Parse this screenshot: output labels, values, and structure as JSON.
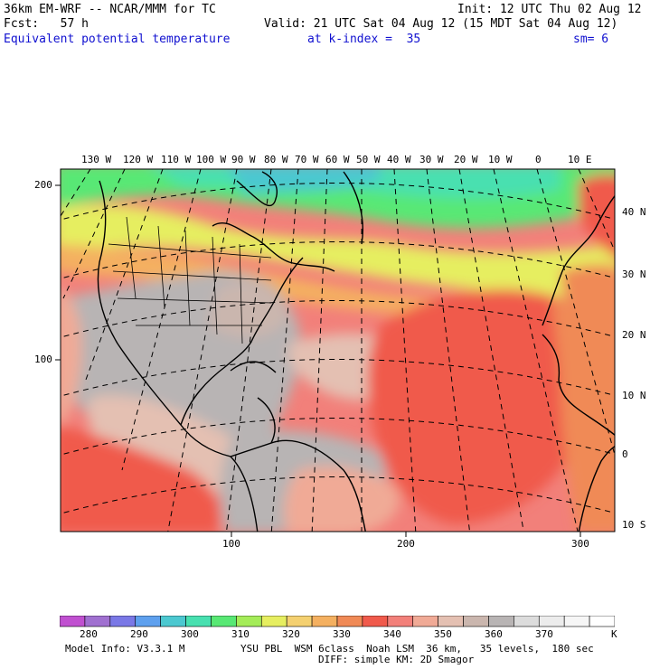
{
  "header": {
    "model": "36km EM-WRF -- NCAR/MMM for TC",
    "init": "Init: 12 UTC Thu 02 Aug 12",
    "fcst": "Fcst:   57 h",
    "valid": "Valid: 21 UTC Sat 04 Aug 12 (15 MDT Sat 04 Aug 12)",
    "field": "Equivalent potential temperature",
    "level": "at k-index =  35",
    "smooth": "sm= 6"
  },
  "map": {
    "lon_labels": [
      "130 W",
      "120 W",
      "110 W",
      "100 W",
      "90 W",
      "80 W",
      "70 W",
      "60 W",
      "50 W",
      "40 W",
      "30 W",
      "20 W",
      "10 W",
      "0",
      "10 E"
    ],
    "lat_labels": [
      "40 N",
      "30 N",
      "20 N",
      "10 N",
      "0",
      "10 S"
    ],
    "grid_x_labels": [
      "100",
      "200",
      "300"
    ],
    "grid_y_labels": [
      "200",
      "100"
    ]
  },
  "colorbar": {
    "levels": [
      "280",
      "290",
      "300",
      "310",
      "320",
      "330",
      "340",
      "350",
      "360",
      "370"
    ],
    "unit": "K",
    "colors": [
      "#c050d0",
      "#a070d0",
      "#7a78e6",
      "#5ea0ee",
      "#4cc8d0",
      "#48e0b0",
      "#58e874",
      "#a4ec58",
      "#e6ee60",
      "#f4d070",
      "#f4b060",
      "#f08a56",
      "#f05a4c",
      "#f2807a",
      "#f0aa96",
      "#e4c0b2",
      "#cab6ae",
      "#b8b4b4",
      "#dcdcdc",
      "#ececec",
      "#f6f6f6",
      "#ffffff"
    ]
  },
  "footer": {
    "model_info": "Model Info: V3.3.1 M",
    "physics": "YSU PBL  WSM 6class  Noah LSM  36 km,   35 levels,  180 sec",
    "diffusion": "DIFF: simple KM: 2D Smagor"
  }
}
